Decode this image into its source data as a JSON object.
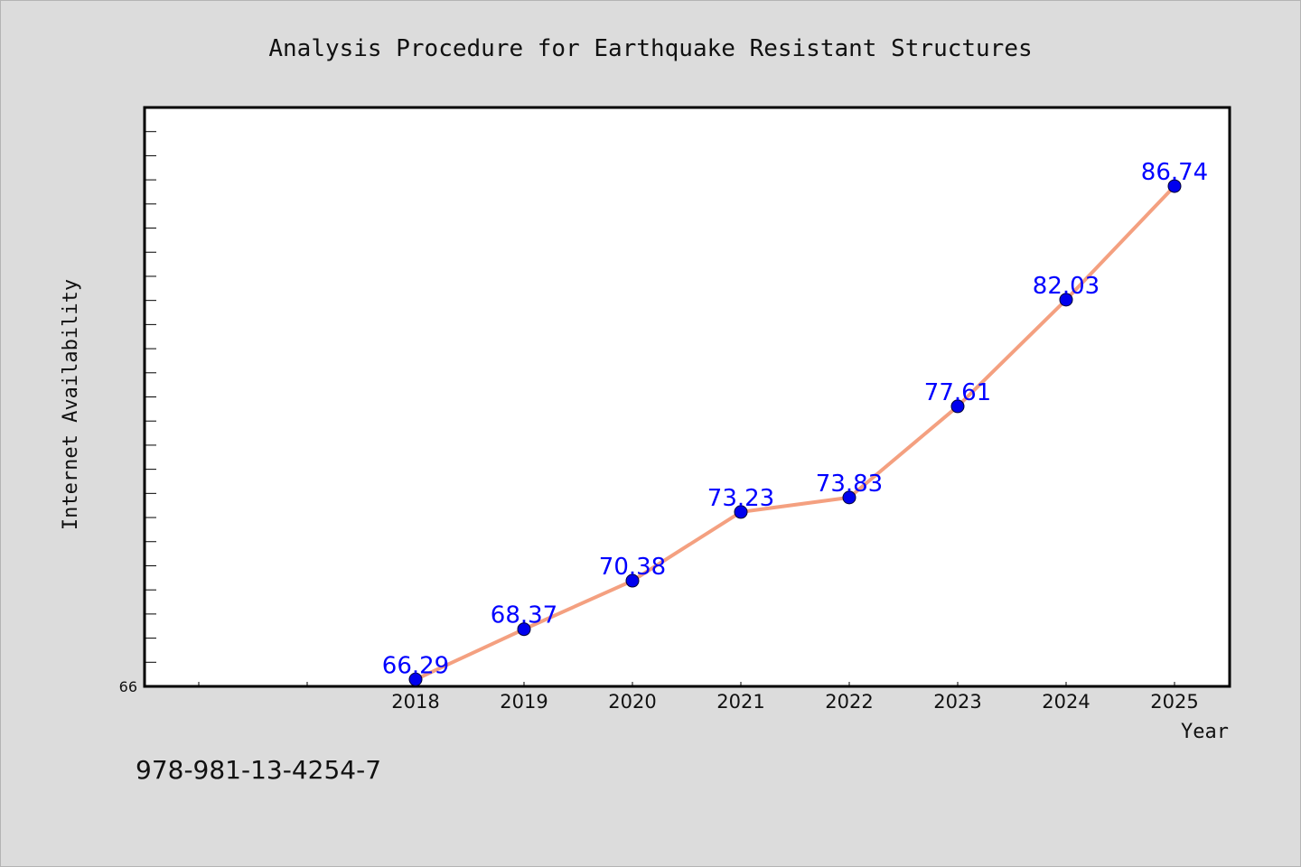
{
  "chart_data": {
    "type": "line",
    "title": "Analysis Procedure for Earthquake Resistant Structures",
    "xlabel": "Year",
    "ylabel": "Internet Availability",
    "x": [
      "2018",
      "2019",
      "2020",
      "2021",
      "2022",
      "2023",
      "2024",
      "2025"
    ],
    "series": [
      {
        "values": [
          66.29,
          68.37,
          70.38,
          73.23,
          73.83,
          77.61,
          82.03,
          86.74
        ],
        "labels": [
          "66.29",
          "68.37",
          "70.38",
          "73.23",
          "73.83",
          "77.61",
          "82.03",
          "86.74"
        ]
      }
    ],
    "y_tick_labels": [
      "66"
    ],
    "ylim": [
      66,
      90
    ],
    "grid": false,
    "legend": "none",
    "colors": {
      "line": "#f4a080",
      "marker": "#0000ee",
      "data_label": "#0000ff",
      "plot_background": "#ffffff",
      "page_background": "#dcdcdc"
    }
  },
  "footer": {
    "isbn": "978-981-13-4254-7"
  }
}
